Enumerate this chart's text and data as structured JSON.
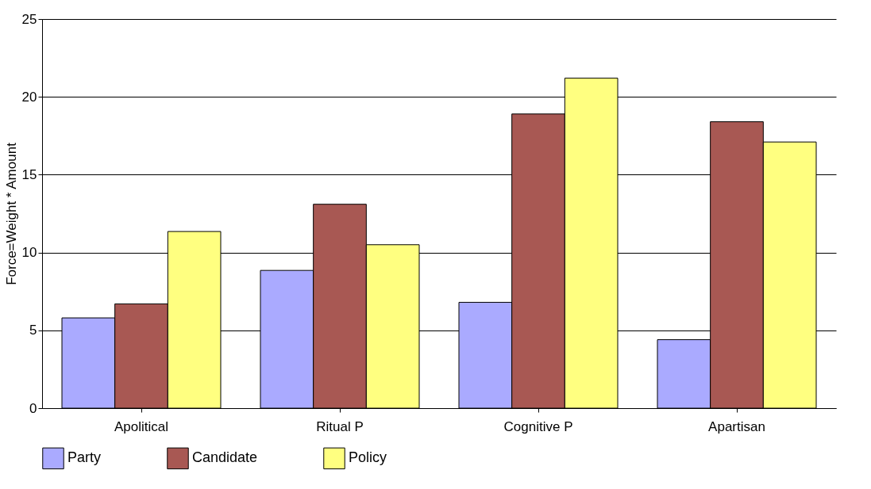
{
  "chart_data": {
    "type": "bar",
    "ylabel": "Force=Weight * Amount",
    "categories": [
      "Apolitical",
      "Ritual P",
      "Cognitive P",
      "Apartisan"
    ],
    "series": [
      {
        "name": "Party",
        "color": "#aaaaff",
        "values": [
          5.8,
          8.85,
          6.8,
          4.4
        ]
      },
      {
        "name": "Candidate",
        "color": "#a85853",
        "values": [
          6.7,
          13.1,
          18.9,
          18.4
        ]
      },
      {
        "name": "Policy",
        "color": "#ffff80",
        "values": [
          11.35,
          10.5,
          21.2,
          17.1
        ]
      }
    ],
    "ylim": [
      0,
      25
    ],
    "yticks": [
      0,
      5,
      10,
      15,
      20,
      25
    ],
    "grid": "y",
    "legend": "bottom"
  }
}
